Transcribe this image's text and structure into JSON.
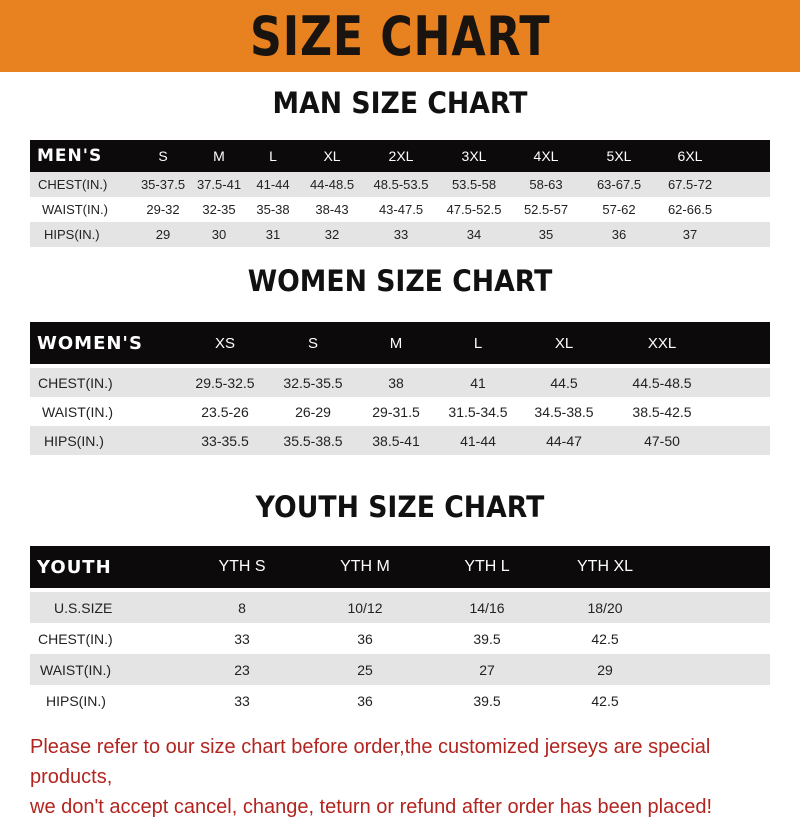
{
  "title": "SIZE CHART",
  "colors": {
    "banner": "#e8811f",
    "header_row": "#0c0a0a",
    "note": "#b3241f"
  },
  "men": {
    "title": "MAN SIZE CHART",
    "header": "MEN'S",
    "sizes": [
      "S",
      "M",
      "L",
      "XL",
      "2XL",
      "3XL",
      "4XL",
      "5XL",
      "6XL"
    ],
    "rows": [
      {
        "label": "CHEST(IN.)",
        "values": [
          "35-37.5",
          "37.5-41",
          "41-44",
          "44-48.5",
          "48.5-53.5",
          "53.5-58",
          "58-63",
          "63-67.5",
          "67.5-72"
        ]
      },
      {
        "label": "WAIST(IN.)",
        "values": [
          "29-32",
          "32-35",
          "35-38",
          "38-43",
          "43-47.5",
          "47.5-52.5",
          "52.5-57",
          "57-62",
          "62-66.5"
        ]
      },
      {
        "label": "HIPS(IN.)",
        "values": [
          "29",
          "30",
          "31",
          "32",
          "33",
          "34",
          "35",
          "36",
          "37"
        ]
      }
    ]
  },
  "women": {
    "title": "WOMEN SIZE CHART",
    "header": "WOMEN'S",
    "sizes": [
      "XS",
      "S",
      "M",
      "L",
      "XL",
      "XXL"
    ],
    "rows": [
      {
        "label": "CHEST(IN.)",
        "values": [
          "29.5-32.5",
          "32.5-35.5",
          "38",
          "41",
          "44.5",
          "44.5-48.5"
        ]
      },
      {
        "label": "WAIST(IN.)",
        "values": [
          "23.5-26",
          "26-29",
          "29-31.5",
          "31.5-34.5",
          "34.5-38.5",
          "38.5-42.5"
        ]
      },
      {
        "label": "HIPS(IN.)",
        "values": [
          "33-35.5",
          "35.5-38.5",
          "38.5-41",
          "41-44",
          "44-47",
          "47-50"
        ]
      }
    ]
  },
  "youth": {
    "title": "YOUTH SIZE CHART",
    "header": "YOUTH",
    "sizes": [
      "YTH S",
      "YTH M",
      "YTH L",
      "YTH XL"
    ],
    "rows": [
      {
        "label": "U.S.SIZE",
        "values": [
          "8",
          "10/12",
          "14/16",
          "18/20"
        ]
      },
      {
        "label": "CHEST(IN.)",
        "values": [
          "33",
          "36",
          "39.5",
          "42.5"
        ]
      },
      {
        "label": "WAIST(IN.)",
        "values": [
          "23",
          "25",
          "27",
          "29"
        ]
      },
      {
        "label": "HIPS(IN.)",
        "values": [
          "33",
          "36",
          "39.5",
          "42.5"
        ]
      }
    ]
  },
  "note": {
    "line1": "Please refer to our size chart before order,the customized jerseys are special products,",
    "line2": "we don't accept cancel, change, teturn or refund after order has been placed!"
  }
}
